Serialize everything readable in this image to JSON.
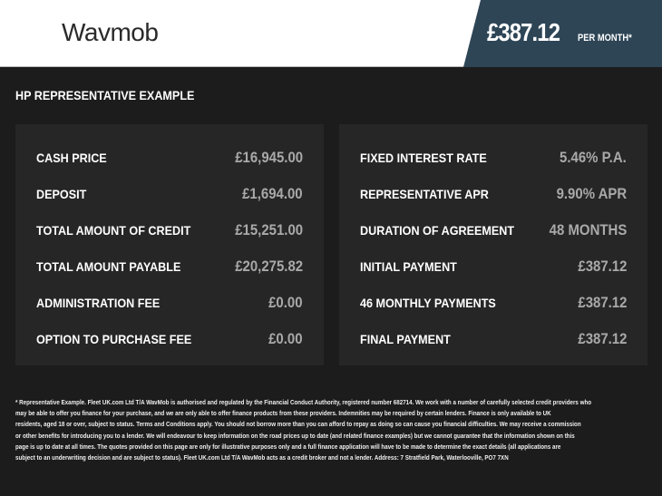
{
  "header": {
    "logo": "Wavmob",
    "price": "£387.12",
    "per_month": "PER MONTH*",
    "accent": "#2e4556"
  },
  "section_title": "HP REPRESENTATIVE EXAMPLE",
  "left_panel": [
    {
      "label": "CASH PRICE",
      "value": "£16,945.00"
    },
    {
      "label": "DEPOSIT",
      "value": "£1,694.00"
    },
    {
      "label": "TOTAL AMOUNT OF CREDIT",
      "value": "£15,251.00"
    },
    {
      "label": "TOTAL AMOUNT PAYABLE",
      "value": "£20,275.82"
    },
    {
      "label": "ADMINISTRATION FEE",
      "value": "£0.00"
    },
    {
      "label": "OPTION TO PURCHASE FEE",
      "value": "£0.00"
    }
  ],
  "right_panel": [
    {
      "label": "FIXED INTEREST RATE",
      "value": "5.46% P.A."
    },
    {
      "label": "REPRESENTATIVE APR",
      "value": "9.90% APR"
    },
    {
      "label": "DURATION OF AGREEMENT",
      "value": "48 MONTHS"
    },
    {
      "label": "INITIAL PAYMENT",
      "value": "£387.12"
    },
    {
      "label": "46 MONTHLY PAYMENTS",
      "value": "£387.12"
    },
    {
      "label": "FINAL PAYMENT",
      "value": "£387.12"
    }
  ],
  "footer_lines": [
    "* Representative Example. Fleet UK.com Ltd T/A WavMob is authorised and regulated by the Financial Conduct Authority, registered number 682714. We work with a number of carefully selected credit providers who",
    "may be able to offer you finance for your purchase, and we are only able to offer finance products from these providers. Indemnities may be required by certain lenders. Finance is only available to UK",
    "residents, aged 18 or over, subject to status. Terms and Conditions apply. You should not borrow more than you can afford to repay as doing so can cause you financial difficulties. We may receive a commission",
    "or other benefits for introducing you to a lender. We will endeavour to keep information on the road prices up to date (and related finance examples) but we cannot guarantee that the information shown on this",
    "page is up to date at all times. The quotes provided on this page are only for illustrative purposes only and a full finance application will have to be made to determine the exact details (all applications are",
    "subject to an underwriting decision and are subject to status). Fleet UK.com Ltd T/A WavMob acts as a credit broker and not a lender. Address: 7 Stratfield Park, Waterlooville, PO7 7XN"
  ]
}
